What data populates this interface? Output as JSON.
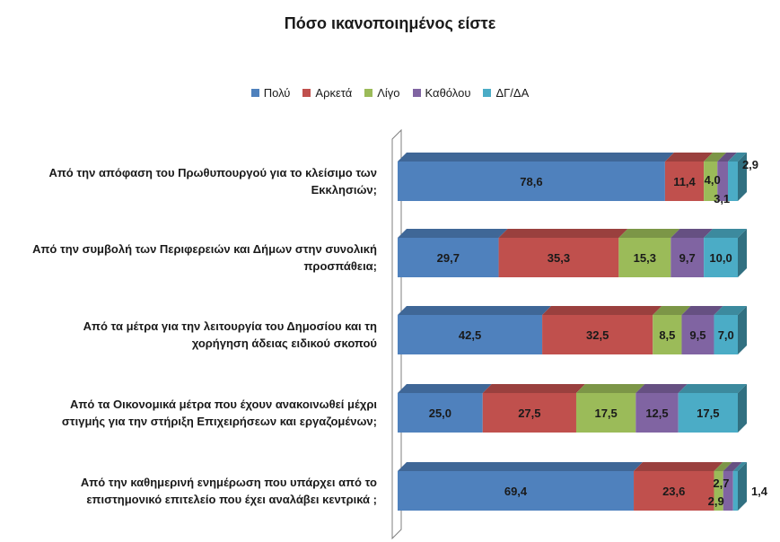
{
  "chart_data": {
    "type": "bar",
    "orientation": "horizontal",
    "stacked": true,
    "title": "Πόσο ικανοποιημένος είστε",
    "legend_position": "top",
    "categories": [
      "Από την απόφαση του Πρωθυπουργού για το κλείσιμο των Εκκλησιών;",
      "Από την συμβολή των Περιφερειών και Δήμων στην συνολική προσπάθεια;",
      "Από τα μέτρα για την λειτουργία του Δημοσίου και τη χορήγηση άδειας ειδικού σκοπού",
      "Από τα Οικονομικά μέτρα που έχουν ανακοινωθεί μέχρι στιγμής για την στήριξη Επιχειρήσεων και εργαζομένων;",
      "Από την καθημερινή ενημέρωση που υπάρχει από το επιστημονικό επιτελείο που έχει αναλάβει κεντρικά ;"
    ],
    "category_lines": [
      [
        "Από την απόφαση του Πρωθυπουργού για το κλείσιμο των",
        "Εκκλησιών;"
      ],
      [
        "Από την συμβολή των Περιφερειών και Δήμων στην συνολική",
        "προσπάθεια;"
      ],
      [
        "Από τα μέτρα για την λειτουργία του Δημοσίου και τη",
        "χορήγηση άδειας ειδικού σκοπού"
      ],
      [
        "Από τα Οικονομικά μέτρα που έχουν ανακοινωθεί μέχρι",
        "στιγμής για την στήριξη Επιχειρήσεων και εργαζομένων;"
      ],
      [
        "Από την καθημερινή ενημέρωση που υπάρχει από το",
        "επιστημονικό επιτελείο που έχει αναλάβει κεντρικά ;"
      ]
    ],
    "series": [
      {
        "name": "Πολύ",
        "color": "#4f81bd",
        "values": [
          78.6,
          29.7,
          42.5,
          25.0,
          69.4
        ],
        "labels": [
          "78,6",
          "29,7",
          "42,5",
          "25,0",
          "69,4"
        ]
      },
      {
        "name": "Αρκετά",
        "color": "#c0504d",
        "values": [
          11.4,
          35.3,
          32.5,
          27.5,
          23.6
        ],
        "labels": [
          "11,4",
          "35,3",
          "32,5",
          "27,5",
          "23,6"
        ]
      },
      {
        "name": "Λίγο",
        "color": "#9bbb59",
        "values": [
          4.0,
          15.3,
          8.5,
          17.5,
          2.7
        ],
        "labels": [
          "4,0",
          "15,3",
          "8,5",
          "17,5",
          "2,7"
        ]
      },
      {
        "name": "Καθόλου",
        "color": "#8064a2",
        "values": [
          3.1,
          9.7,
          9.5,
          12.5,
          2.9
        ],
        "labels": [
          "3,1",
          "9,7",
          "9,5",
          "12,5",
          "2,9"
        ]
      },
      {
        "name": "ΔΓ/ΔΑ",
        "color": "#4bacc6",
        "values": [
          2.9,
          10.0,
          7.0,
          17.5,
          1.4
        ],
        "labels": [
          "2,9",
          "10,0",
          "7,0",
          "17,5",
          "1,4"
        ]
      }
    ],
    "xlim": [
      0,
      100
    ],
    "xlabel": "",
    "ylabel": "",
    "grid": false
  }
}
